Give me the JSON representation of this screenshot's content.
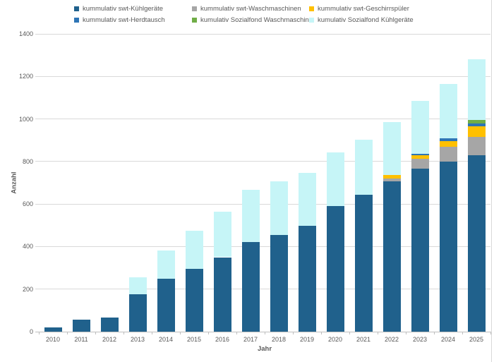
{
  "chart_data": {
    "type": "bar",
    "stacked": true,
    "title": "",
    "xlabel": "Jahr",
    "ylabel": "Anzahl",
    "ylim": [
      0,
      1400
    ],
    "ytick_interval": 200,
    "grid": true,
    "legend_position": "top",
    "categories": [
      "2010",
      "2011",
      "2012",
      "2013",
      "2014",
      "2015",
      "2016",
      "2017",
      "2018",
      "2019",
      "2020",
      "2021",
      "2022",
      "2023",
      "2024",
      "2025"
    ],
    "series": [
      {
        "name": "kummulativ swt-Kühlgeräte",
        "color": "#20618c",
        "values": [
          20,
          55,
          68,
          176,
          248,
          295,
          350,
          422,
          455,
          498,
          590,
          645,
          705,
          768,
          800,
          830
        ]
      },
      {
        "name": "kummulativ swt-Waschmaschinen",
        "color": "#a6a6a6",
        "values": [
          0,
          0,
          0,
          0,
          0,
          0,
          0,
          0,
          0,
          0,
          0,
          0,
          16,
          45,
          70,
          85
        ]
      },
      {
        "name": "kummulativ swt-Geschirrspüler",
        "color": "#ffc000",
        "values": [
          0,
          0,
          0,
          0,
          0,
          0,
          0,
          0,
          0,
          0,
          0,
          0,
          14,
          16,
          26,
          50
        ]
      },
      {
        "name": "kummulativ swt-Herdtausch",
        "color": "#2e75b6",
        "values": [
          0,
          0,
          0,
          0,
          0,
          0,
          0,
          0,
          0,
          0,
          0,
          0,
          0,
          8,
          14,
          13
        ]
      },
      {
        "name": "kumulativ Sozialfond Waschmaschine",
        "color": "#70ad47",
        "values": [
          0,
          0,
          0,
          0,
          0,
          0,
          0,
          0,
          0,
          0,
          0,
          0,
          0,
          0,
          0,
          17
        ]
      },
      {
        "name": "kumulativ Sozialfond Kühlgeräte",
        "color": "#c6f5f7",
        "values": [
          0,
          0,
          0,
          80,
          132,
          180,
          215,
          245,
          252,
          250,
          252,
          258,
          250,
          248,
          255,
          285
        ]
      }
    ]
  },
  "colors": {
    "grid": "#d9d9d9",
    "axis": "#bfbfbf",
    "text": "#595959",
    "background": "#ffffff"
  }
}
